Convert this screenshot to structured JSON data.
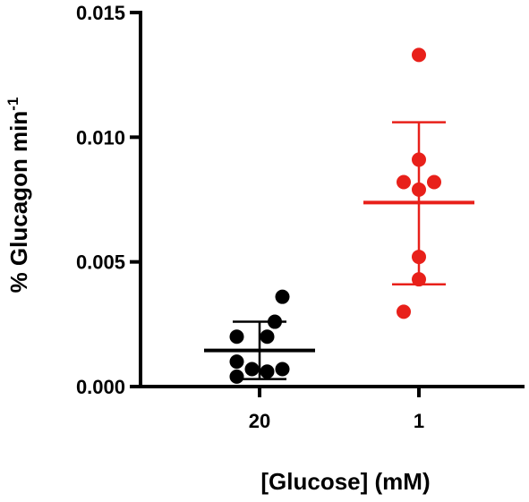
{
  "chart_data": {
    "type": "scatter",
    "title": "",
    "xlabel": "[Glucose] (mM)",
    "ylabel_main": "% Glucagon min",
    "ylabel_sup": "-1",
    "categories": [
      "20",
      "1"
    ],
    "ylim": [
      0,
      0.015
    ],
    "yticks": [
      "0.000",
      "0.005",
      "0.010",
      "0.015"
    ],
    "ytick_values": [
      0,
      0.005,
      0.01,
      0.015
    ],
    "grid": false,
    "legend": "none",
    "series": [
      {
        "category": "20",
        "color": "#000000",
        "points": [
          {
            "dx": 0.3,
            "y": 0.0036
          },
          {
            "dx": 0.2,
            "y": 0.0026
          },
          {
            "dx": -0.3,
            "y": 0.002
          },
          {
            "dx": 0.1,
            "y": 0.002
          },
          {
            "dx": -0.3,
            "y": 0.001
          },
          {
            "dx": -0.1,
            "y": 0.0007
          },
          {
            "dx": 0.1,
            "y": 0.0006
          },
          {
            "dx": 0.3,
            "y": 0.0007
          },
          {
            "dx": -0.3,
            "y": 0.0004
          }
        ],
        "mean": 0.00145,
        "sd_upper": 0.0026,
        "sd_lower": 0.0003
      },
      {
        "category": "1",
        "color": "#e8201a",
        "points": [
          {
            "dx": 0.0,
            "y": 0.0133
          },
          {
            "dx": 0.0,
            "y": 0.0091
          },
          {
            "dx": -0.2,
            "y": 0.0082
          },
          {
            "dx": 0.2,
            "y": 0.0082
          },
          {
            "dx": 0.0,
            "y": 0.0079
          },
          {
            "dx": 0.0,
            "y": 0.0052
          },
          {
            "dx": 0.0,
            "y": 0.0043
          },
          {
            "dx": -0.2,
            "y": 0.003
          }
        ],
        "mean": 0.00738,
        "sd_upper": 0.0106,
        "sd_lower": 0.0041
      }
    ]
  }
}
